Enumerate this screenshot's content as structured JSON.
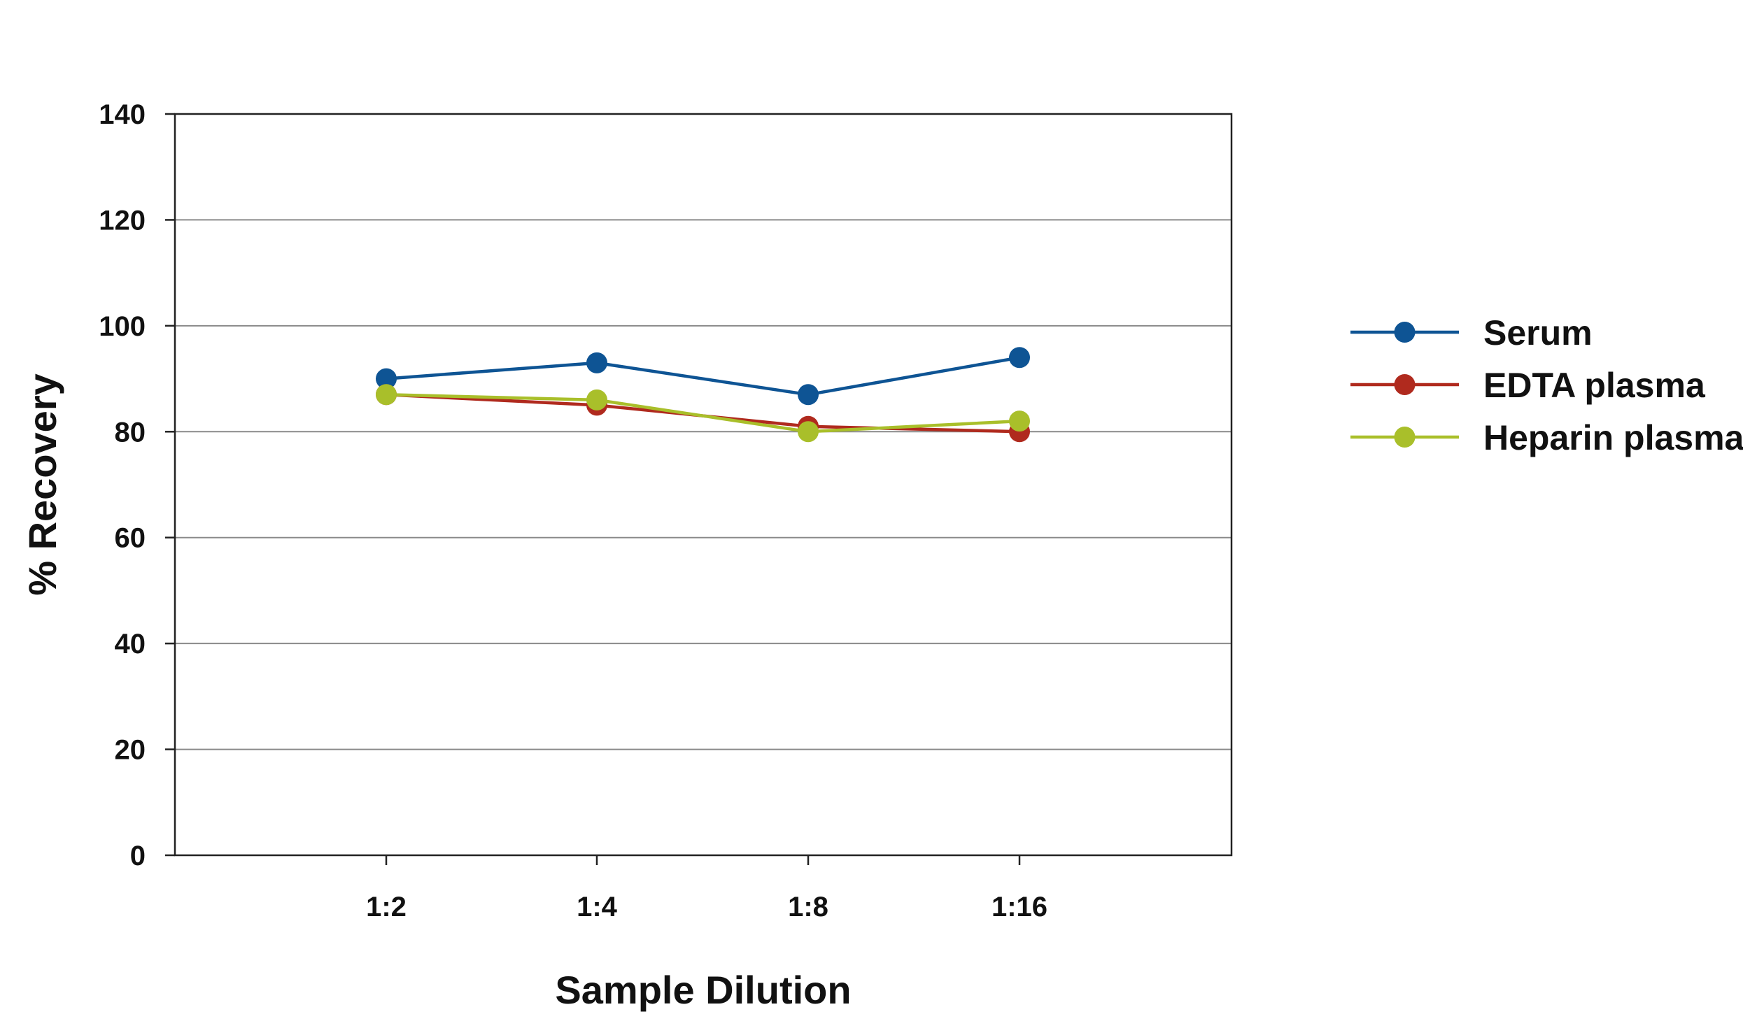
{
  "chart_data": {
    "type": "line",
    "title": "",
    "xlabel": "Sample Dilution",
    "ylabel": "% Recovery",
    "categories": [
      "1:2",
      "1:4",
      "1:8",
      "1:16"
    ],
    "ylim": [
      0,
      140
    ],
    "yticks": [
      0,
      20,
      40,
      60,
      80,
      100,
      120,
      140
    ],
    "grid": true,
    "legend_position": "right",
    "series": [
      {
        "name": "Serum",
        "color": "#0e5494",
        "values": [
          90,
          93,
          87,
          94
        ]
      },
      {
        "name": "EDTA plasma",
        "color": "#b02a1e",
        "values": [
          87,
          85,
          81,
          80
        ]
      },
      {
        "name": "Heparin plasma",
        "color": "#a9bf2a",
        "values": [
          87,
          86,
          80,
          82
        ]
      }
    ]
  }
}
